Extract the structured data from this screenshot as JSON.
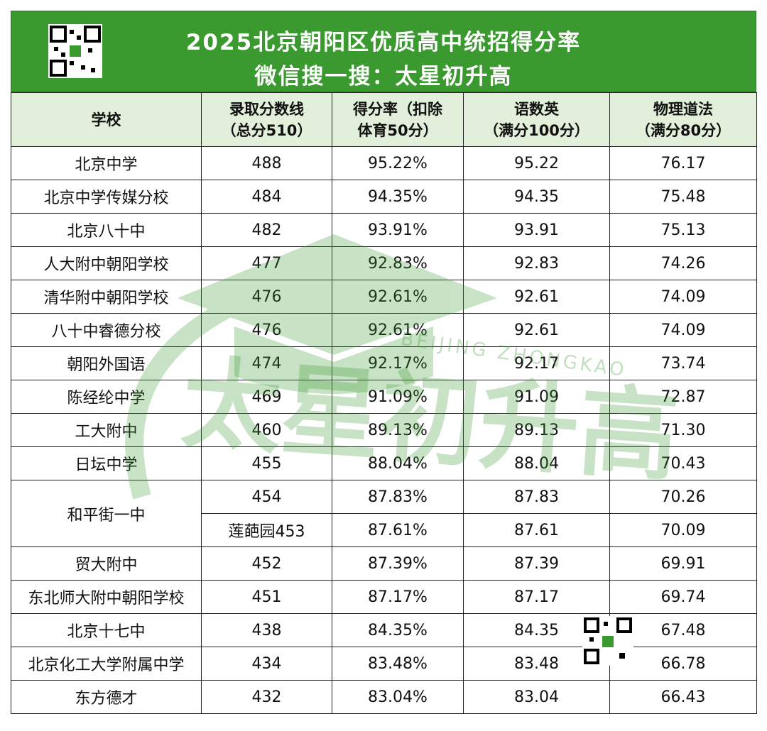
{
  "header": {
    "title": "2025北京朝阳区优质高中统招得分率",
    "subtitle": "微信搜一搜：太星初升高"
  },
  "table": {
    "columns": [
      [
        "学校"
      ],
      [
        "录取分数线",
        "（总分510）"
      ],
      [
        "得分率（扣除",
        "体育50分）"
      ],
      [
        "语数英",
        "（满分100分）"
      ],
      [
        "物理道法",
        "（满分80分）"
      ]
    ],
    "rows": [
      {
        "school": "北京中学",
        "lines": [
          [
            "488",
            "95.22%",
            "95.22",
            "76.17"
          ]
        ]
      },
      {
        "school": "北京中学传媒分校",
        "lines": [
          [
            "484",
            "94.35%",
            "94.35",
            "75.48"
          ]
        ]
      },
      {
        "school": "北京八十中",
        "lines": [
          [
            "482",
            "93.91%",
            "93.91",
            "75.13"
          ]
        ]
      },
      {
        "school": "人大附中朝阳学校",
        "lines": [
          [
            "477",
            "92.83%",
            "92.83",
            "74.26"
          ]
        ]
      },
      {
        "school": "清华附中朝阳学校",
        "lines": [
          [
            "476",
            "92.61%",
            "92.61",
            "74.09"
          ]
        ]
      },
      {
        "school": "八十中睿德分校",
        "lines": [
          [
            "476",
            "92.61%",
            "92.61",
            "74.09"
          ]
        ]
      },
      {
        "school": "朝阳外国语",
        "lines": [
          [
            "474",
            "92.17%",
            "92.17",
            "73.74"
          ]
        ]
      },
      {
        "school": "陈经纶中学",
        "lines": [
          [
            "469",
            "91.09%",
            "91.09",
            "72.87"
          ]
        ]
      },
      {
        "school": "工大附中",
        "lines": [
          [
            "460",
            "89.13%",
            "89.13",
            "71.30"
          ]
        ]
      },
      {
        "school": "日坛中学",
        "lines": [
          [
            "455",
            "88.04%",
            "88.04",
            "70.43"
          ]
        ]
      },
      {
        "school": "和平街一中",
        "lines": [
          [
            "454",
            "87.83%",
            "87.83",
            "70.26"
          ],
          [
            "莲葩园453",
            "87.61%",
            "87.61",
            "70.09"
          ]
        ]
      },
      {
        "school": "贸大附中",
        "lines": [
          [
            "452",
            "87.39%",
            "87.39",
            "69.91"
          ]
        ]
      },
      {
        "school": "东北师大附中朝阳学校",
        "lines": [
          [
            "451",
            "87.17%",
            "87.17",
            "69.74"
          ]
        ]
      },
      {
        "school": "北京十七中",
        "lines": [
          [
            "438",
            "84.35%",
            "84.35",
            "67.48"
          ]
        ]
      },
      {
        "school": "北京化工大学附属中学",
        "lines": [
          [
            "434",
            "83.48%",
            "83.48",
            "66.78"
          ]
        ]
      },
      {
        "school": "东方德才",
        "lines": [
          [
            "432",
            "83.04%",
            "83.04",
            "66.43"
          ]
        ]
      }
    ]
  },
  "watermark": {
    "text": "太星初升高",
    "subtitle": "BEIJING ZHONGKAO"
  }
}
